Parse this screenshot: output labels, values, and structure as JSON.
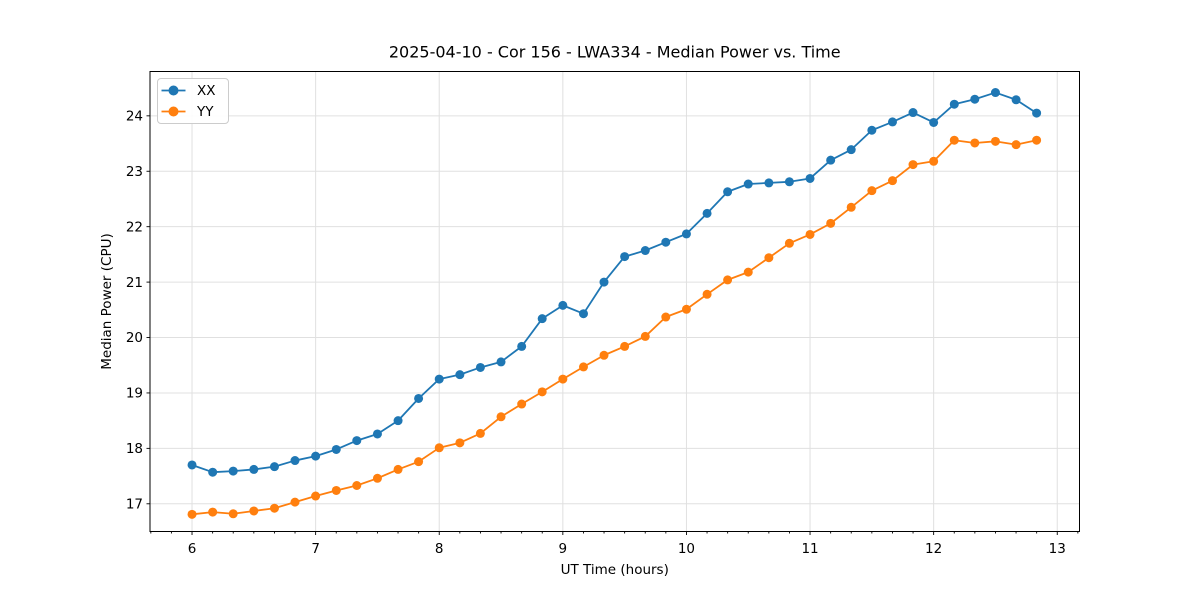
{
  "figure": {
    "kind": "matplotlib-line-plot",
    "background": "#ffffff"
  },
  "chart_data": {
    "type": "line",
    "title": "2025-04-10 - Cor 156 - LWA334 - Median Power vs. Time",
    "xlabel": "UT Time (hours)",
    "ylabel": "Median Power (CPU)",
    "xlim": [
      5.66,
      13.18
    ],
    "ylim": [
      16.5,
      24.8
    ],
    "xticks": [
      6,
      7,
      8,
      9,
      10,
      11,
      12,
      13
    ],
    "yticks": [
      17,
      18,
      19,
      20,
      21,
      22,
      23,
      24
    ],
    "x_minor_step_hours": 0.1667,
    "grid": true,
    "legend_position": "upper-left",
    "legend_entries": [
      "XX",
      "YY"
    ],
    "x": [
      6.0,
      6.167,
      6.333,
      6.5,
      6.667,
      6.833,
      7.0,
      7.167,
      7.333,
      7.5,
      7.667,
      7.833,
      8.0,
      8.167,
      8.333,
      8.5,
      8.667,
      8.833,
      9.0,
      9.167,
      9.333,
      9.5,
      9.667,
      9.833,
      10.0,
      10.167,
      10.333,
      10.5,
      10.667,
      10.833,
      11.0,
      11.167,
      11.333,
      11.5,
      11.667,
      11.833,
      12.0,
      12.167,
      12.333,
      12.5,
      12.667,
      12.833
    ],
    "series": [
      {
        "name": "XX",
        "color": "#1f77b4",
        "marker": "circle",
        "values": [
          17.7,
          17.57,
          17.59,
          17.62,
          17.67,
          17.78,
          17.86,
          17.98,
          18.14,
          18.26,
          18.5,
          18.9,
          19.25,
          19.33,
          19.46,
          19.56,
          19.84,
          20.34,
          20.58,
          20.43,
          21.0,
          21.46,
          21.57,
          21.72,
          21.87,
          22.24,
          22.63,
          22.77,
          22.79,
          22.81,
          22.87,
          23.2,
          23.39,
          23.74,
          23.89,
          24.06,
          23.88,
          24.21,
          24.3,
          24.42,
          24.29,
          24.05
        ]
      },
      {
        "name": "YY",
        "color": "#ff7f0e",
        "marker": "circle",
        "values": [
          16.81,
          16.85,
          16.82,
          16.87,
          16.92,
          17.03,
          17.14,
          17.24,
          17.33,
          17.46,
          17.62,
          17.76,
          18.01,
          18.1,
          18.27,
          18.57,
          18.8,
          19.02,
          19.25,
          19.47,
          19.68,
          19.84,
          20.02,
          20.37,
          20.51,
          20.78,
          21.04,
          21.18,
          21.44,
          21.7,
          21.86,
          22.06,
          22.35,
          22.65,
          22.83,
          23.12,
          23.18,
          23.56,
          23.51,
          23.54,
          23.48,
          23.56
        ]
      }
    ],
    "style": {
      "grid_color": "#e0e0e0",
      "spine_color": "#000000",
      "tick_color": "#000000",
      "legend_border_color": "#cccccc",
      "legend_background": "#ffffff",
      "line_width": 1.8,
      "marker_diameter": 9
    }
  }
}
